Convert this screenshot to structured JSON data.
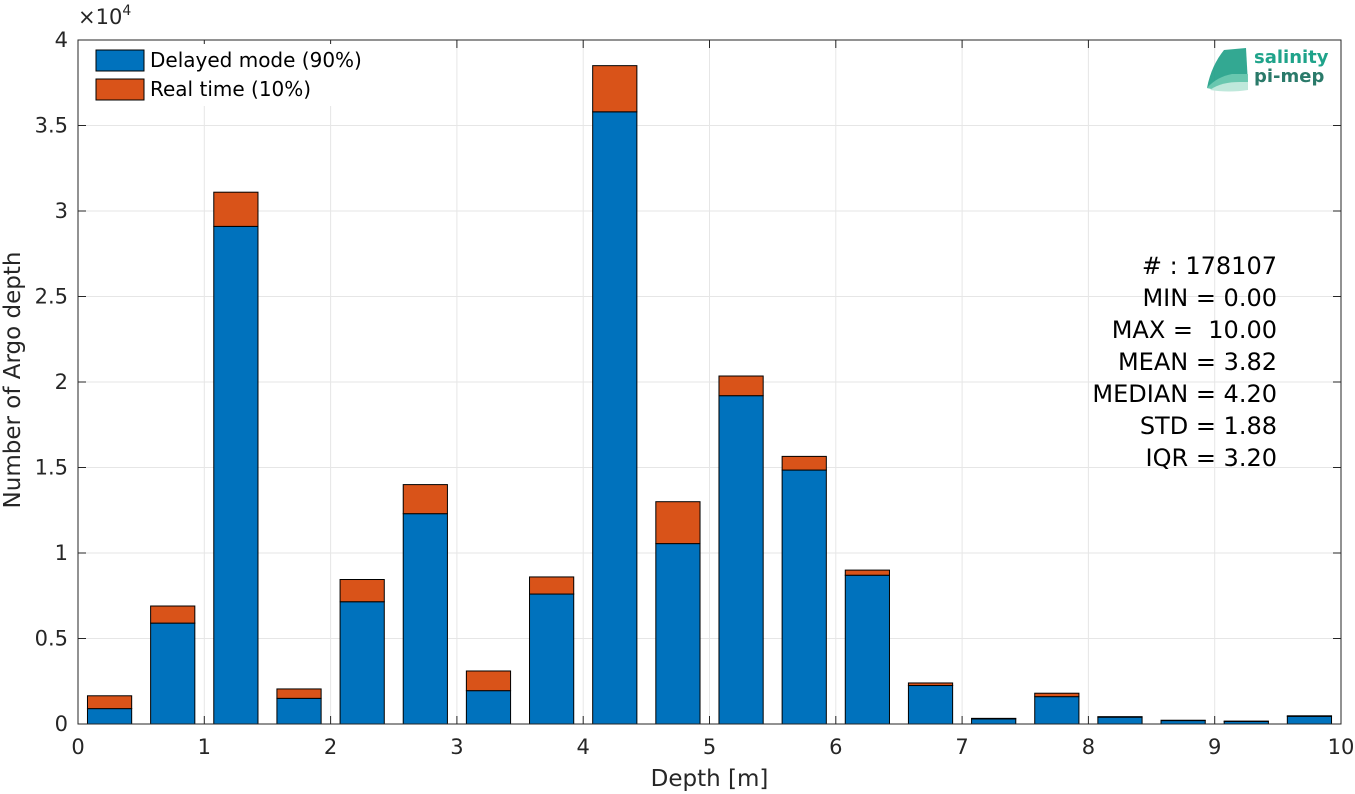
{
  "chart_data": {
    "type": "bar",
    "stacked": true,
    "xlabel": "Depth [m]",
    "ylabel": "Number of Argo depth",
    "y_exponent_label": "×10",
    "y_exponent_power": "4",
    "xlim": [
      0,
      10
    ],
    "ylim": [
      0,
      40000
    ],
    "grid": true,
    "legend_position": "top-left",
    "x_ticks": [
      0,
      1,
      2,
      3,
      4,
      5,
      6,
      7,
      8,
      9,
      10
    ],
    "x_tick_labels": [
      "0",
      "1",
      "2",
      "3",
      "4",
      "5",
      "6",
      "7",
      "8",
      "9",
      "10"
    ],
    "y_ticks": [
      0,
      5000,
      10000,
      15000,
      20000,
      25000,
      30000,
      35000,
      40000
    ],
    "y_tick_labels": [
      "0",
      "0.5",
      "1",
      "1.5",
      "2",
      "2.5",
      "3",
      "3.5",
      "4"
    ],
    "x": [
      0.25,
      0.75,
      1.25,
      1.75,
      2.25,
      2.75,
      3.25,
      3.75,
      4.25,
      4.75,
      5.25,
      5.75,
      6.25,
      6.75,
      7.25,
      7.75,
      8.25,
      8.75,
      9.25,
      9.75
    ],
    "bar_width": 0.35,
    "series": [
      {
        "name": "Delayed mode (90%)",
        "color": "#0072BD",
        "values": [
          900,
          5900,
          29100,
          1500,
          7150,
          12300,
          1950,
          7600,
          35800,
          10550,
          19200,
          14850,
          8700,
          2250,
          300,
          1600,
          400,
          200,
          150,
          450
        ]
      },
      {
        "name": "Real time (10%)",
        "color": "#D95319",
        "values": [
          750,
          1000,
          2000,
          550,
          1300,
          1700,
          1150,
          1000,
          2700,
          2450,
          1150,
          800,
          300,
          150,
          30,
          200,
          30,
          20,
          20,
          30
        ]
      }
    ],
    "stats": [
      "# : 178107",
      "MIN = 0.00",
      "MAX =  10.00",
      "MEAN = 3.82",
      "MEDIAN = 4.20",
      "STD = 1.88",
      "IQR = 3.20"
    ]
  },
  "logo": {
    "line1": "salinity",
    "line2": "pi-mep",
    "color1": "#1fa38a",
    "color2": "#2a7a6a"
  }
}
